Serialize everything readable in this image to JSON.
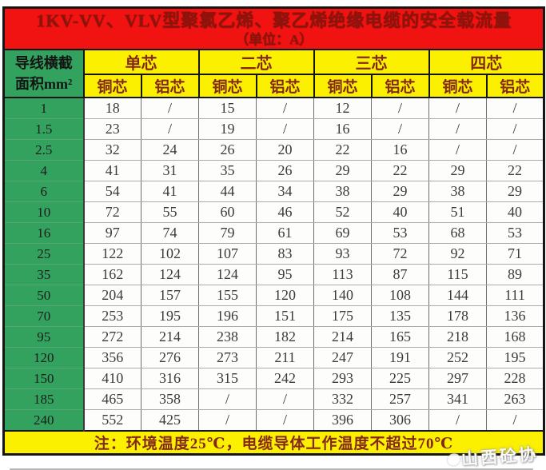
{
  "title": {
    "line1": "1KV-VV、VLV型聚氯乙烯、聚乙烯绝缘电缆的安全载流量",
    "line2": "（单位：A）"
  },
  "header": {
    "area_line1": "导线横截",
    "area_line2": "面积mm²",
    "groups": [
      {
        "label": "单芯"
      },
      {
        "label": "二芯"
      },
      {
        "label": "三芯"
      },
      {
        "label": "四芯"
      }
    ],
    "sub_labels": [
      "铜芯",
      "铝芯"
    ]
  },
  "table": {
    "rows": [
      {
        "area": "1",
        "values": [
          "18",
          "/",
          "15",
          "/",
          "12",
          "/",
          "/",
          "/"
        ]
      },
      {
        "area": "1.5",
        "values": [
          "23",
          "/",
          "19",
          "/",
          "16",
          "/",
          "/",
          "/"
        ]
      },
      {
        "area": "2.5",
        "values": [
          "32",
          "24",
          "26",
          "20",
          "22",
          "16",
          "/",
          "/"
        ]
      },
      {
        "area": "4",
        "values": [
          "41",
          "31",
          "35",
          "26",
          "29",
          "22",
          "29",
          "22"
        ]
      },
      {
        "area": "6",
        "values": [
          "54",
          "41",
          "44",
          "34",
          "38",
          "29",
          "38",
          "29"
        ]
      },
      {
        "area": "10",
        "values": [
          "72",
          "55",
          "60",
          "46",
          "52",
          "40",
          "51",
          "40"
        ]
      },
      {
        "area": "16",
        "values": [
          "97",
          "74",
          "79",
          "61",
          "69",
          "53",
          "68",
          "53"
        ]
      },
      {
        "area": "25",
        "values": [
          "122",
          "102",
          "107",
          "83",
          "93",
          "72",
          "92",
          "71"
        ]
      },
      {
        "area": "35",
        "values": [
          "162",
          "124",
          "124",
          "95",
          "113",
          "87",
          "115",
          "89"
        ]
      },
      {
        "area": "50",
        "values": [
          "204",
          "157",
          "155",
          "120",
          "140",
          "108",
          "144",
          "111"
        ]
      },
      {
        "area": "70",
        "values": [
          "253",
          "195",
          "196",
          "151",
          "175",
          "135",
          "178",
          "136"
        ]
      },
      {
        "area": "95",
        "values": [
          "272",
          "214",
          "238",
          "182",
          "214",
          "165",
          "218",
          "168"
        ]
      },
      {
        "area": "120",
        "values": [
          "356",
          "276",
          "273",
          "211",
          "247",
          "191",
          "252",
          "195"
        ]
      },
      {
        "area": "150",
        "values": [
          "410",
          "316",
          "315",
          "242",
          "293",
          "225",
          "297",
          "228"
        ]
      },
      {
        "area": "185",
        "values": [
          "465",
          "358",
          "/",
          "/",
          "332",
          "257",
          "341",
          "263"
        ]
      },
      {
        "area": "240",
        "values": [
          "552",
          "425",
          "/",
          "/",
          "396",
          "306",
          "/",
          "/"
        ]
      }
    ]
  },
  "footer": {
    "note": "注：环境温度25℃，电缆导体工作温度不超过70℃"
  },
  "watermark": {
    "text": "山西砼协"
  },
  "colors": {
    "title_bg": "#f01311",
    "title_text": "#8b150c",
    "header_bg": "#fbf000",
    "header_text": "#84291a",
    "area_col_bg": "#32a25e",
    "data_text": "#3b3b3b",
    "note_bg": "#fbf000",
    "note_text": "#84291a",
    "border": "#151515"
  }
}
